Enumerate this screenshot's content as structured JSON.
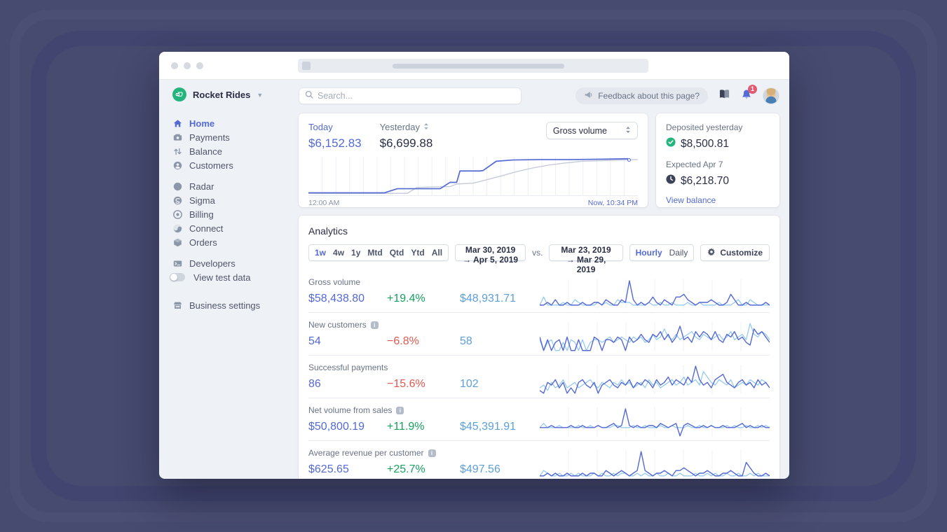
{
  "colors": {
    "accent": "#5469d4",
    "positive": "#17a05e",
    "negative": "#e25950",
    "previous_text": "#5d9fd9",
    "brand_green": "#24b47e",
    "badge_red": "#e25972"
  },
  "sidebar": {
    "account_name": "Rocket Rides",
    "items": [
      {
        "label": "Home"
      },
      {
        "label": "Payments"
      },
      {
        "label": "Balance"
      },
      {
        "label": "Customers"
      },
      {
        "label": "Radar"
      },
      {
        "label": "Sigma"
      },
      {
        "label": "Billing"
      },
      {
        "label": "Connect"
      },
      {
        "label": "Orders"
      },
      {
        "label": "Developers"
      },
      {
        "label": "View test data"
      },
      {
        "label": "Business settings"
      }
    ]
  },
  "topbar": {
    "search_placeholder": "Search...",
    "feedback_label": "Feedback about this page?",
    "notification_count": "1"
  },
  "overview": {
    "today_label": "Today",
    "today_value": "$6,152.83",
    "yesterday_label": "Yesterday",
    "yesterday_value": "$6,699.88",
    "metric_select_value": "Gross volume",
    "axis_start": "12:00 AM",
    "axis_end": "Now, 10:34 PM"
  },
  "deposits": {
    "deposited_label": "Deposited yesterday",
    "deposited_value": "$8,500.81",
    "expected_label": "Expected Apr 7",
    "expected_value": "$6,218.70",
    "link_label": "View balance"
  },
  "analytics": {
    "title": "Analytics",
    "range_options": [
      "1w",
      "4w",
      "1y",
      "Mtd",
      "Qtd",
      "Ytd",
      "All"
    ],
    "range_active": "1w",
    "range_current": "Mar 30, 2019 →  Apr 5, 2019",
    "vs_label": "vs.",
    "range_previous": "Mar 23, 2019 → Mar 29, 2019",
    "granularity_options": [
      "Hourly",
      "Daily"
    ],
    "granularity_active": "Hourly",
    "customize_label": "Customize",
    "metrics": [
      {
        "label": "Gross volume",
        "value": "$58,438.80",
        "delta": "+19.4%",
        "delta_dir": "up",
        "previous": "$48,931.71"
      },
      {
        "label": "New customers",
        "value": "54",
        "delta": "−6.8%",
        "delta_dir": "down",
        "previous": "58"
      },
      {
        "label": "Successful payments",
        "value": "86",
        "delta": "−15.6%",
        "delta_dir": "down",
        "previous": "102"
      },
      {
        "label": "Net volume from sales",
        "value": "$50,800.19",
        "delta": "+11.9%",
        "delta_dir": "up",
        "previous": "$45,391.91"
      },
      {
        "label": "Average revenue per customer",
        "value": "$625.65",
        "delta": "+25.7%",
        "delta_dir": "up",
        "previous": "$497.56"
      }
    ]
  },
  "chart_data": [
    {
      "type": "line",
      "title": "Gross volume today vs yesterday",
      "gridlines": 24,
      "grid_color": "#eceff4",
      "x_axis": {
        "start": "12:00 AM",
        "end": "Now, 10:34 PM"
      },
      "series": [
        {
          "name": "Yesterday ($6,699.88)",
          "color": "#c6cbd8",
          "width": 1.4,
          "points": [
            [
              0,
              2
            ],
            [
              30,
              2
            ],
            [
              33,
              16
            ],
            [
              43,
              18
            ],
            [
              45,
              24
            ],
            [
              50,
              26
            ],
            [
              54,
              34
            ],
            [
              58,
              42
            ],
            [
              63,
              53
            ],
            [
              68,
              62
            ],
            [
              73,
              69
            ],
            [
              78,
              74
            ],
            [
              83,
              78
            ],
            [
              100,
              82
            ]
          ]
        },
        {
          "name": "Today ($6,152.83)",
          "color": "#5469d4",
          "width": 1.7,
          "points": [
            [
              0,
              3
            ],
            [
              23,
              3
            ],
            [
              27,
              13
            ],
            [
              40,
              13
            ],
            [
              43,
              28
            ],
            [
              45,
              28
            ],
            [
              46,
              55
            ],
            [
              52,
              55
            ],
            [
              53,
              56
            ],
            [
              57,
              78
            ],
            [
              62,
              81
            ],
            [
              70,
              82
            ],
            [
              80,
              82
            ],
            [
              90,
              83
            ],
            [
              97,
              84
            ]
          ]
        }
      ]
    },
    {
      "type": "line",
      "title": "Gross volume sparkline (current vs previous week)",
      "gridlines": 8,
      "grid_color": "#eef1f6",
      "series": [
        {
          "name": "previous",
          "color": "#8fc7ef",
          "width": 1.2,
          "values": [
            1,
            4,
            1,
            1,
            1,
            1,
            2,
            1,
            1,
            3,
            2,
            1,
            1,
            1,
            1,
            2,
            1,
            2,
            1,
            1,
            3,
            2,
            2,
            2,
            1,
            1,
            1,
            1,
            2,
            1,
            1,
            2,
            1,
            1,
            2,
            1,
            1,
            1,
            2,
            1,
            1,
            2,
            1,
            1,
            1,
            1,
            2,
            1,
            1,
            1,
            2,
            3,
            1,
            1,
            3,
            2,
            1,
            1,
            1,
            1
          ]
        },
        {
          "name": "current",
          "color": "#5469d4",
          "width": 1.4,
          "values": [
            1,
            1,
            2,
            1,
            3,
            1,
            1,
            2,
            1,
            1,
            1,
            2,
            1,
            1,
            2,
            2,
            1,
            3,
            2,
            1,
            1,
            3,
            2,
            10,
            3,
            1,
            2,
            1,
            2,
            4,
            2,
            1,
            3,
            2,
            1,
            4,
            4,
            5,
            3,
            2,
            1,
            2,
            2,
            2,
            3,
            2,
            1,
            1,
            2,
            5,
            3,
            1,
            1,
            2,
            1,
            1,
            1,
            1,
            2,
            1
          ]
        }
      ]
    },
    {
      "type": "line",
      "title": "New customers sparkline (current vs previous week)",
      "gridlines": 8,
      "grid_color": "#eef1f6",
      "series": [
        {
          "name": "previous",
          "color": "#8fc7ef",
          "width": 1.2,
          "values": [
            4,
            0,
            3,
            4,
            0,
            0,
            3,
            0,
            4,
            3,
            0,
            4,
            0,
            3,
            4,
            4,
            3,
            4,
            5,
            3,
            4,
            5,
            4,
            3,
            5,
            4,
            5,
            3,
            4,
            6,
            4,
            5,
            8,
            5,
            4,
            6,
            4,
            5,
            6,
            7,
            5,
            4,
            6,
            5,
            4,
            5,
            6,
            4,
            5,
            7,
            4,
            5,
            6,
            4,
            10,
            6,
            5,
            7,
            6,
            4
          ]
        },
        {
          "name": "current",
          "color": "#5469d4",
          "width": 1.4,
          "values": [
            5,
            0,
            4,
            0,
            3,
            4,
            0,
            5,
            0,
            0,
            4,
            0,
            0,
            0,
            5,
            4,
            0,
            4,
            4,
            3,
            5,
            4,
            0,
            5,
            3,
            4,
            6,
            4,
            3,
            6,
            5,
            7,
            4,
            6,
            3,
            5,
            9,
            4,
            5,
            3,
            7,
            5,
            7,
            6,
            4,
            7,
            4,
            3,
            6,
            5,
            7,
            4,
            5,
            3,
            2,
            8,
            6,
            7,
            5,
            3
          ]
        }
      ]
    },
    {
      "type": "line",
      "title": "Successful payments sparkline (current vs previous week)",
      "gridlines": 8,
      "grid_color": "#eef1f6",
      "series": [
        {
          "name": "previous",
          "color": "#8fc7ef",
          "width": 1.2,
          "values": [
            2,
            3,
            1,
            4,
            2,
            3,
            5,
            2,
            3,
            4,
            2,
            3,
            4,
            5,
            3,
            2,
            4,
            3,
            2,
            4,
            3,
            5,
            3,
            4,
            2,
            3,
            4,
            2,
            5,
            3,
            4,
            2,
            3,
            4,
            5,
            3,
            4,
            6,
            3,
            4,
            5,
            3,
            8,
            6,
            4,
            3,
            5,
            4,
            3,
            5,
            2,
            3,
            4,
            3,
            5,
            4,
            3,
            5,
            4,
            2
          ]
        },
        {
          "name": "current",
          "color": "#5469d4",
          "width": 1.4,
          "values": [
            1,
            0,
            4,
            3,
            5,
            2,
            4,
            0,
            2,
            0,
            4,
            5,
            3,
            2,
            4,
            0,
            3,
            4,
            5,
            3,
            2,
            4,
            3,
            5,
            2,
            4,
            3,
            5,
            4,
            2,
            5,
            3,
            4,
            6,
            3,
            5,
            4,
            3,
            6,
            4,
            10,
            5,
            3,
            4,
            2,
            5,
            6,
            7,
            4,
            3,
            2,
            4,
            5,
            3,
            4,
            2,
            5,
            3,
            4,
            2
          ]
        }
      ]
    },
    {
      "type": "line",
      "title": "Net volume from sales sparkline (current vs previous week)",
      "gridlines": 8,
      "grid_color": "#eef1f6",
      "series": [
        {
          "name": "previous",
          "color": "#8fc7ef",
          "width": 1.2,
          "values": [
            1,
            3,
            1,
            1,
            1,
            2,
            1,
            1,
            1,
            1,
            2,
            1,
            1,
            2,
            1,
            2,
            1,
            1,
            1,
            2,
            2,
            1,
            1,
            1,
            2,
            1,
            1,
            2,
            1,
            1,
            1,
            2,
            1,
            1,
            2,
            1,
            1,
            1,
            2,
            1,
            1,
            2,
            1,
            1,
            2,
            1,
            1,
            1,
            2,
            1,
            2,
            1,
            1,
            2,
            1,
            1,
            2,
            1,
            2,
            1
          ]
        },
        {
          "name": "current",
          "color": "#5469d4",
          "width": 1.4,
          "values": [
            1,
            1,
            1,
            2,
            1,
            1,
            1,
            1,
            2,
            1,
            1,
            2,
            1,
            1,
            1,
            2,
            1,
            1,
            2,
            3,
            1,
            2,
            10,
            2,
            1,
            2,
            1,
            1,
            2,
            2,
            1,
            3,
            2,
            1,
            2,
            3,
            -3,
            2,
            3,
            2,
            1,
            1,
            2,
            1,
            2,
            1,
            1,
            2,
            1,
            1,
            1,
            2,
            3,
            1,
            2,
            1,
            1,
            2,
            1,
            1
          ]
        }
      ]
    },
    {
      "type": "line",
      "title": "Average revenue per customer sparkline (current vs previous week)",
      "gridlines": 8,
      "grid_color": "#eef1f6",
      "series": [
        {
          "name": "previous",
          "color": "#8fc7ef",
          "width": 1.2,
          "values": [
            1,
            3,
            2,
            1,
            1,
            2,
            1,
            1,
            2,
            1,
            2,
            1,
            1,
            1,
            2,
            1,
            2,
            1,
            1,
            2,
            1,
            2,
            2,
            1,
            1,
            2,
            1,
            2,
            1,
            1,
            2,
            1,
            1,
            2,
            1,
            1,
            2,
            1,
            1,
            1,
            2,
            1,
            1,
            2,
            1,
            2,
            1,
            1,
            2,
            1,
            1,
            2,
            1,
            1,
            2,
            1,
            2,
            1,
            1,
            1
          ]
        },
        {
          "name": "current",
          "color": "#5469d4",
          "width": 1.4,
          "values": [
            1,
            1,
            2,
            1,
            2,
            1,
            1,
            2,
            1,
            1,
            1,
            2,
            1,
            2,
            2,
            1,
            1,
            3,
            2,
            1,
            2,
            3,
            2,
            1,
            2,
            3,
            10,
            3,
            2,
            1,
            2,
            2,
            3,
            2,
            1,
            3,
            3,
            4,
            3,
            2,
            1,
            2,
            2,
            3,
            2,
            1,
            1,
            2,
            2,
            3,
            2,
            1,
            1,
            6,
            4,
            2,
            1,
            1,
            2,
            1
          ]
        }
      ]
    }
  ]
}
